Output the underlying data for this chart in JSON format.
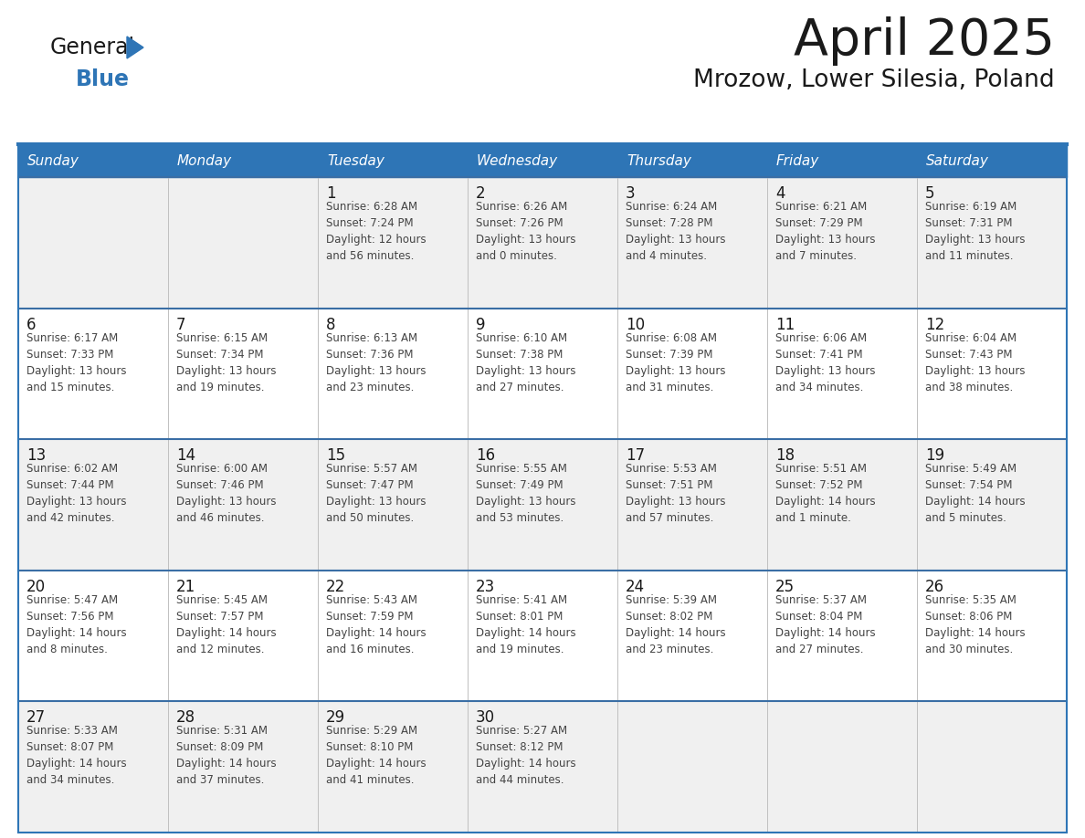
{
  "title": "April 2025",
  "subtitle": "Mrozow, Lower Silesia, Poland",
  "header_bg_color": "#2e75b6",
  "header_text_color": "#ffffff",
  "border_color": "#2e75b6",
  "row_separator_color": "#3a6ea5",
  "col_separator_color": "#c0c0c0",
  "bg_color_light": "#f0f0f0",
  "bg_color_white": "#ffffff",
  "day_headers": [
    "Sunday",
    "Monday",
    "Tuesday",
    "Wednesday",
    "Thursday",
    "Friday",
    "Saturday"
  ],
  "title_color": "#1a1a1a",
  "subtitle_color": "#1a1a1a",
  "cell_text_color": "#444444",
  "day_num_color": "#1a1a1a",
  "logo_general_color": "#1a1a1a",
  "logo_blue_color": "#2e75b6",
  "weeks": [
    [
      {
        "day": "",
        "info": ""
      },
      {
        "day": "",
        "info": ""
      },
      {
        "day": "1",
        "info": "Sunrise: 6:28 AM\nSunset: 7:24 PM\nDaylight: 12 hours\nand 56 minutes."
      },
      {
        "day": "2",
        "info": "Sunrise: 6:26 AM\nSunset: 7:26 PM\nDaylight: 13 hours\nand 0 minutes."
      },
      {
        "day": "3",
        "info": "Sunrise: 6:24 AM\nSunset: 7:28 PM\nDaylight: 13 hours\nand 4 minutes."
      },
      {
        "day": "4",
        "info": "Sunrise: 6:21 AM\nSunset: 7:29 PM\nDaylight: 13 hours\nand 7 minutes."
      },
      {
        "day": "5",
        "info": "Sunrise: 6:19 AM\nSunset: 7:31 PM\nDaylight: 13 hours\nand 11 minutes."
      }
    ],
    [
      {
        "day": "6",
        "info": "Sunrise: 6:17 AM\nSunset: 7:33 PM\nDaylight: 13 hours\nand 15 minutes."
      },
      {
        "day": "7",
        "info": "Sunrise: 6:15 AM\nSunset: 7:34 PM\nDaylight: 13 hours\nand 19 minutes."
      },
      {
        "day": "8",
        "info": "Sunrise: 6:13 AM\nSunset: 7:36 PM\nDaylight: 13 hours\nand 23 minutes."
      },
      {
        "day": "9",
        "info": "Sunrise: 6:10 AM\nSunset: 7:38 PM\nDaylight: 13 hours\nand 27 minutes."
      },
      {
        "day": "10",
        "info": "Sunrise: 6:08 AM\nSunset: 7:39 PM\nDaylight: 13 hours\nand 31 minutes."
      },
      {
        "day": "11",
        "info": "Sunrise: 6:06 AM\nSunset: 7:41 PM\nDaylight: 13 hours\nand 34 minutes."
      },
      {
        "day": "12",
        "info": "Sunrise: 6:04 AM\nSunset: 7:43 PM\nDaylight: 13 hours\nand 38 minutes."
      }
    ],
    [
      {
        "day": "13",
        "info": "Sunrise: 6:02 AM\nSunset: 7:44 PM\nDaylight: 13 hours\nand 42 minutes."
      },
      {
        "day": "14",
        "info": "Sunrise: 6:00 AM\nSunset: 7:46 PM\nDaylight: 13 hours\nand 46 minutes."
      },
      {
        "day": "15",
        "info": "Sunrise: 5:57 AM\nSunset: 7:47 PM\nDaylight: 13 hours\nand 50 minutes."
      },
      {
        "day": "16",
        "info": "Sunrise: 5:55 AM\nSunset: 7:49 PM\nDaylight: 13 hours\nand 53 minutes."
      },
      {
        "day": "17",
        "info": "Sunrise: 5:53 AM\nSunset: 7:51 PM\nDaylight: 13 hours\nand 57 minutes."
      },
      {
        "day": "18",
        "info": "Sunrise: 5:51 AM\nSunset: 7:52 PM\nDaylight: 14 hours\nand 1 minute."
      },
      {
        "day": "19",
        "info": "Sunrise: 5:49 AM\nSunset: 7:54 PM\nDaylight: 14 hours\nand 5 minutes."
      }
    ],
    [
      {
        "day": "20",
        "info": "Sunrise: 5:47 AM\nSunset: 7:56 PM\nDaylight: 14 hours\nand 8 minutes."
      },
      {
        "day": "21",
        "info": "Sunrise: 5:45 AM\nSunset: 7:57 PM\nDaylight: 14 hours\nand 12 minutes."
      },
      {
        "day": "22",
        "info": "Sunrise: 5:43 AM\nSunset: 7:59 PM\nDaylight: 14 hours\nand 16 minutes."
      },
      {
        "day": "23",
        "info": "Sunrise: 5:41 AM\nSunset: 8:01 PM\nDaylight: 14 hours\nand 19 minutes."
      },
      {
        "day": "24",
        "info": "Sunrise: 5:39 AM\nSunset: 8:02 PM\nDaylight: 14 hours\nand 23 minutes."
      },
      {
        "day": "25",
        "info": "Sunrise: 5:37 AM\nSunset: 8:04 PM\nDaylight: 14 hours\nand 27 minutes."
      },
      {
        "day": "26",
        "info": "Sunrise: 5:35 AM\nSunset: 8:06 PM\nDaylight: 14 hours\nand 30 minutes."
      }
    ],
    [
      {
        "day": "27",
        "info": "Sunrise: 5:33 AM\nSunset: 8:07 PM\nDaylight: 14 hours\nand 34 minutes."
      },
      {
        "day": "28",
        "info": "Sunrise: 5:31 AM\nSunset: 8:09 PM\nDaylight: 14 hours\nand 37 minutes."
      },
      {
        "day": "29",
        "info": "Sunrise: 5:29 AM\nSunset: 8:10 PM\nDaylight: 14 hours\nand 41 minutes."
      },
      {
        "day": "30",
        "info": "Sunrise: 5:27 AM\nSunset: 8:12 PM\nDaylight: 14 hours\nand 44 minutes."
      },
      {
        "day": "",
        "info": ""
      },
      {
        "day": "",
        "info": ""
      },
      {
        "day": "",
        "info": ""
      }
    ]
  ]
}
